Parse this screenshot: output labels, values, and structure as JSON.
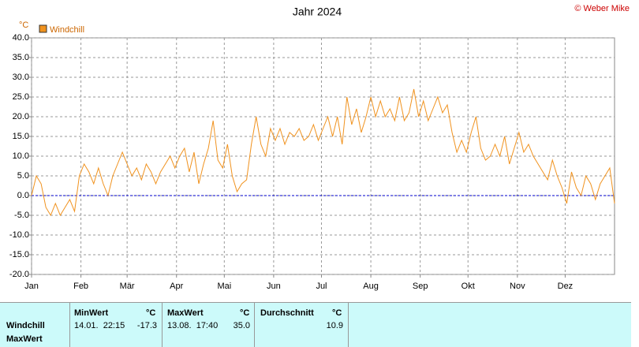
{
  "chart_data": {
    "type": "line",
    "title": "Jahr 2024",
    "copyright": "© Weber Mike",
    "y_unit": "°C",
    "xlim": [
      0,
      366
    ],
    "xticks": [
      {
        "value": 0,
        "label": "Jan"
      },
      {
        "value": 31,
        "label": "Feb"
      },
      {
        "value": 60,
        "label": "Mär"
      },
      {
        "value": 91,
        "label": "Apr"
      },
      {
        "value": 121,
        "label": "Mai"
      },
      {
        "value": 152,
        "label": "Jun"
      },
      {
        "value": 182,
        "label": "Jul"
      },
      {
        "value": 213,
        "label": "Aug"
      },
      {
        "value": 244,
        "label": "Sep"
      },
      {
        "value": 274,
        "label": "Okt"
      },
      {
        "value": 305,
        "label": "Nov"
      },
      {
        "value": 335,
        "label": "Dez"
      }
    ],
    "ylim": [
      -20,
      40
    ],
    "yticks": [
      {
        "value": -20,
        "label": "-20.0"
      },
      {
        "value": -15,
        "label": "-15.0"
      },
      {
        "value": -10,
        "label": "-10.0"
      },
      {
        "value": -5,
        "label": "-5.0"
      },
      {
        "value": 0,
        "label": "0.0"
      },
      {
        "value": 5,
        "label": "5.0"
      },
      {
        "value": 10,
        "label": "10.0"
      },
      {
        "value": 15,
        "label": "15.0"
      },
      {
        "value": 20,
        "label": "20.0"
      },
      {
        "value": 25,
        "label": "25.0"
      },
      {
        "value": 30,
        "label": "30.0"
      },
      {
        "value": 35,
        "label": "35.0"
      },
      {
        "value": 40,
        "label": "40.0"
      }
    ],
    "grid": true,
    "x": [
      0,
      3,
      6,
      9,
      12,
      15,
      18,
      21,
      24,
      27,
      30,
      33,
      36,
      39,
      42,
      45,
      48,
      51,
      54,
      57,
      60,
      63,
      66,
      69,
      72,
      75,
      78,
      81,
      84,
      87,
      90,
      93,
      96,
      99,
      102,
      105,
      108,
      111,
      114,
      117,
      120,
      123,
      126,
      129,
      132,
      135,
      138,
      141,
      144,
      147,
      150,
      153,
      156,
      159,
      162,
      165,
      168,
      171,
      174,
      177,
      180,
      183,
      186,
      189,
      192,
      195,
      198,
      201,
      204,
      207,
      210,
      213,
      216,
      219,
      222,
      225,
      228,
      231,
      234,
      237,
      240,
      243,
      246,
      249,
      252,
      255,
      258,
      261,
      264,
      267,
      270,
      273,
      276,
      279,
      282,
      285,
      288,
      291,
      294,
      297,
      300,
      303,
      306,
      309,
      312,
      315,
      318,
      321,
      324,
      327,
      330,
      333,
      336,
      339,
      342,
      345,
      348,
      351,
      354,
      357,
      360,
      363,
      366
    ],
    "series": [
      {
        "name": "Windchill",
        "color": "#f0921e",
        "values": [
          0,
          5,
          3,
          -3,
          -5,
          -2,
          -5,
          -3,
          -1,
          -4,
          5,
          8,
          6,
          3,
          7,
          3,
          0,
          5,
          8,
          11,
          8,
          5,
          7,
          4,
          8,
          6,
          3,
          6,
          8,
          10,
          7,
          10,
          12,
          6,
          11,
          3,
          8,
          12,
          19,
          9,
          7,
          13,
          5,
          1,
          3,
          4,
          13,
          20,
          13,
          10,
          17,
          14,
          17,
          13,
          16,
          15,
          17,
          14,
          15,
          18,
          14,
          17,
          20,
          15,
          20,
          13,
          25,
          18,
          22,
          16,
          20,
          25,
          20,
          24,
          20,
          22,
          19,
          25,
          19,
          21,
          27,
          20,
          24,
          19,
          22,
          25,
          21,
          23,
          16,
          11,
          14,
          11,
          16,
          20,
          12,
          9,
          10,
          13,
          10,
          15,
          8,
          12,
          16,
          11,
          13,
          10,
          8,
          6,
          4,
          9,
          5,
          2,
          -2,
          6,
          2,
          0,
          5,
          3,
          -1,
          3,
          5,
          7,
          -2
        ]
      }
    ]
  },
  "table": {
    "header": [
      "MinWert",
      "°C",
      "MaxWert",
      "°C",
      "Durchschnitt",
      "°C"
    ],
    "rows": [
      {
        "label": "Windchill",
        "cells": [
          "14.01.  22:15",
          "-17.3",
          "13.08.  17:40",
          "35.0",
          "10.9"
        ]
      },
      {
        "label": "MaxWert"
      }
    ]
  }
}
